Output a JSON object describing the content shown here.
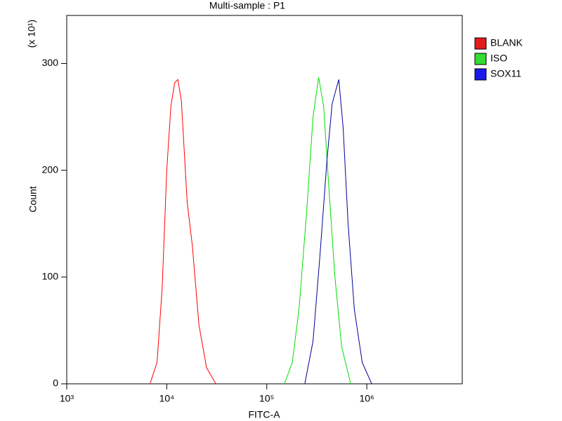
{
  "chart_data": {
    "type": "line",
    "title": "Multi-sample : P1",
    "x_label": "FITC-A",
    "y_label": "Count",
    "y_multiplier": "(x 10¹)",
    "log_x": true,
    "xlim": [
      1000,
      9000000
    ],
    "xticks": [
      {
        "value": 1000,
        "label": "10³"
      },
      {
        "value": 10000,
        "label": "10⁴"
      },
      {
        "value": 100000,
        "label": "10⁵"
      },
      {
        "value": 1000000,
        "label": "10⁶"
      }
    ],
    "ylim": [
      0,
      345
    ],
    "yticks": [
      0,
      100,
      200,
      300
    ],
    "legend": "top-right",
    "series": [
      {
        "name": "BLANK",
        "color": "#ff0000",
        "legend_color": "#e31a1c",
        "x": [
          6800,
          8000,
          9000,
          10000,
          11000,
          12000,
          12900,
          14000,
          16000,
          18000,
          21000,
          25000,
          31000
        ],
        "values": [
          0,
          20,
          90,
          200,
          260,
          282,
          285,
          265,
          170,
          130,
          55,
          15,
          0
        ]
      },
      {
        "name": "ISO",
        "color": "#00dd00",
        "legend_color": "#33dd33",
        "x": [
          150000,
          180000,
          210000,
          250000,
          290000,
          330000,
          370000,
          420000,
          480000,
          560000,
          690000
        ],
        "values": [
          0,
          20,
          70,
          160,
          250,
          287,
          260,
          180,
          100,
          35,
          0
        ]
      },
      {
        "name": "SOX11",
        "color": "#000099",
        "legend_color": "#1a1aee",
        "x": [
          240000,
          290000,
          340000,
          400000,
          450000,
          490000,
          525000,
          580000,
          650000,
          750000,
          900000,
          1120000
        ],
        "values": [
          0,
          40,
          120,
          210,
          262,
          275,
          285,
          240,
          150,
          70,
          20,
          0
        ]
      }
    ]
  }
}
